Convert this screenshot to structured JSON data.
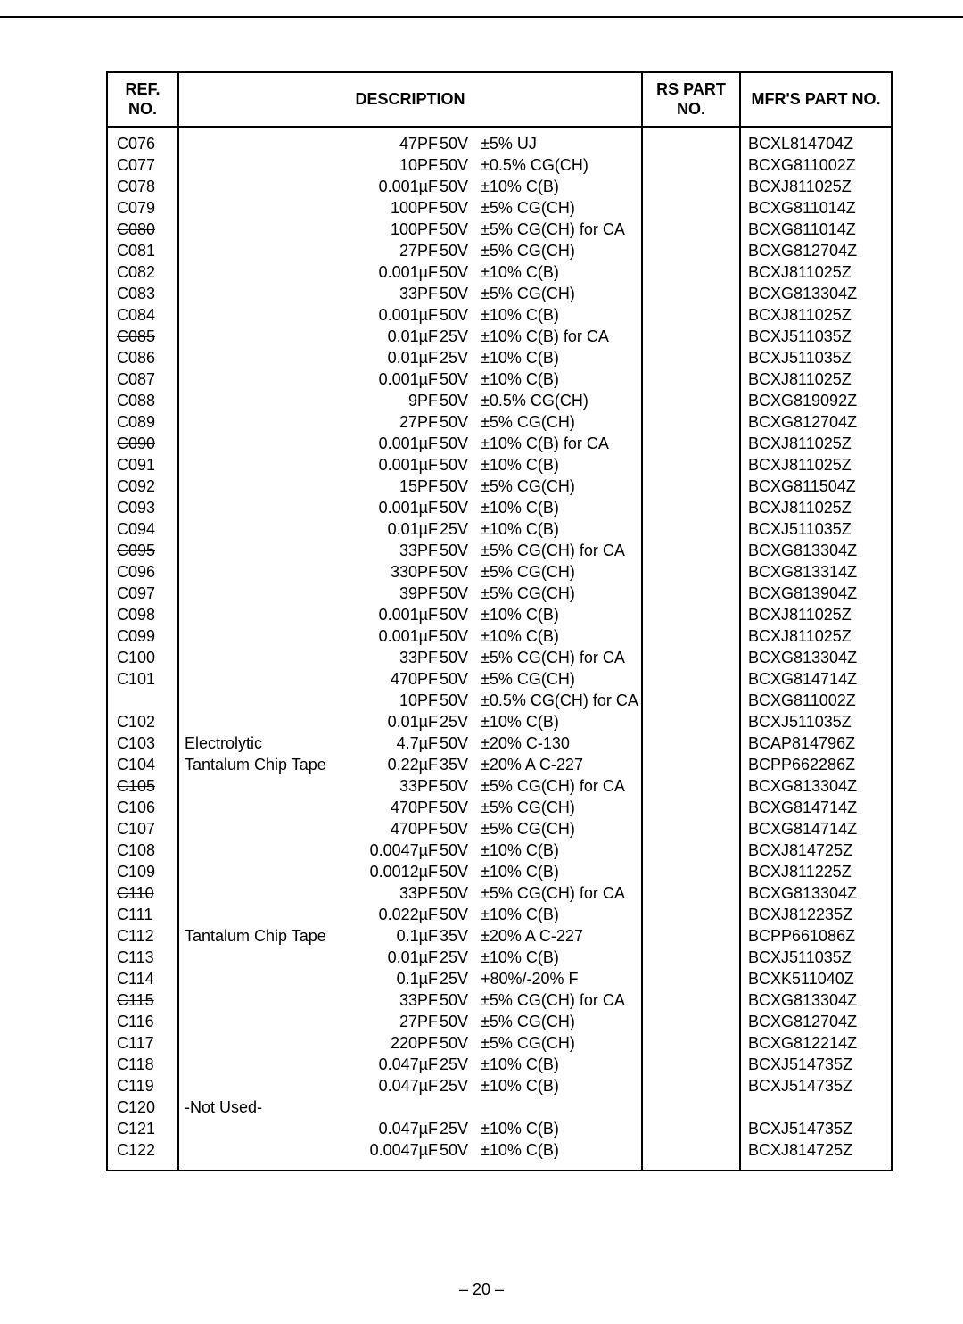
{
  "headers": {
    "ref": "REF.\nNO.",
    "description": "DESCRIPTION",
    "rs": "RS\nPART NO.",
    "mfr": "MFR'S\nPART NO."
  },
  "page_number": "– 20 –",
  "rows": [
    {
      "ref": "C076",
      "strike": false,
      "prefix": "",
      "val": "47PF",
      "volt": "50V",
      "tol": "±5% UJ",
      "mfr": "BCXL814704Z"
    },
    {
      "ref": "C077",
      "strike": false,
      "prefix": "",
      "val": "10PF",
      "volt": "50V",
      "tol": "±0.5% CG(CH)",
      "mfr": "BCXG811002Z"
    },
    {
      "ref": "C078",
      "strike": false,
      "prefix": "",
      "val": "0.001µF",
      "volt": "50V",
      "tol": "±10% C(B)",
      "mfr": "BCXJ811025Z"
    },
    {
      "ref": "C079",
      "strike": false,
      "prefix": "",
      "val": "100PF",
      "volt": "50V",
      "tol": "±5% CG(CH)",
      "mfr": "BCXG811014Z"
    },
    {
      "ref": "C080",
      "strike": true,
      "prefix": "",
      "val": "100PF",
      "volt": "50V",
      "tol": "±5% CG(CH) for CA",
      "mfr": "BCXG811014Z"
    },
    {
      "ref": "C081",
      "strike": false,
      "prefix": "",
      "val": "27PF",
      "volt": "50V",
      "tol": "±5% CG(CH)",
      "mfr": "BCXG812704Z"
    },
    {
      "ref": "C082",
      "strike": false,
      "prefix": "",
      "val": "0.001µF",
      "volt": "50V",
      "tol": "±10% C(B)",
      "mfr": "BCXJ811025Z"
    },
    {
      "ref": "C083",
      "strike": false,
      "prefix": "",
      "val": "33PF",
      "volt": "50V",
      "tol": "±5% CG(CH)",
      "mfr": "BCXG813304Z"
    },
    {
      "ref": "C084",
      "strike": false,
      "prefix": "",
      "val": "0.001µF",
      "volt": "50V",
      "tol": "±10% C(B)",
      "mfr": "BCXJ811025Z"
    },
    {
      "ref": "C085",
      "strike": true,
      "prefix": "",
      "val": "0.01µF",
      "volt": "25V",
      "tol": "±10% C(B) for CA",
      "mfr": "BCXJ511035Z"
    },
    {
      "ref": "C086",
      "strike": false,
      "prefix": "",
      "val": "0.01µF",
      "volt": "25V",
      "tol": "±10% C(B)",
      "mfr": "BCXJ511035Z"
    },
    {
      "ref": "C087",
      "strike": false,
      "prefix": "",
      "val": "0.001µF",
      "volt": "50V",
      "tol": "±10% C(B)",
      "mfr": "BCXJ811025Z"
    },
    {
      "ref": "C088",
      "strike": false,
      "prefix": "",
      "val": "9PF",
      "volt": "50V",
      "tol": "±0.5% CG(CH)",
      "mfr": "BCXG819092Z"
    },
    {
      "ref": "C089",
      "strike": false,
      "prefix": "",
      "val": "27PF",
      "volt": "50V",
      "tol": "±5% CG(CH)",
      "mfr": "BCXG812704Z"
    },
    {
      "ref": "C090",
      "strike": true,
      "prefix": "",
      "val": "0.001µF",
      "volt": "50V",
      "tol": "±10% C(B) for CA",
      "mfr": "BCXJ811025Z"
    },
    {
      "ref": "C091",
      "strike": false,
      "prefix": "",
      "val": "0.001µF",
      "volt": "50V",
      "tol": "±10% C(B)",
      "mfr": "BCXJ811025Z"
    },
    {
      "ref": "C092",
      "strike": false,
      "prefix": "",
      "val": "15PF",
      "volt": "50V",
      "tol": "±5% CG(CH)",
      "mfr": "BCXG811504Z"
    },
    {
      "ref": "C093",
      "strike": false,
      "prefix": "",
      "val": "0.001µF",
      "volt": "50V",
      "tol": "±10% C(B)",
      "mfr": "BCXJ811025Z"
    },
    {
      "ref": "C094",
      "strike": false,
      "prefix": "",
      "val": "0.01µF",
      "volt": "25V",
      "tol": "±10% C(B)",
      "mfr": "BCXJ511035Z"
    },
    {
      "ref": "C095",
      "strike": true,
      "prefix": "",
      "val": "33PF",
      "volt": "50V",
      "tol": "±5% CG(CH) for CA",
      "mfr": "BCXG813304Z"
    },
    {
      "ref": "C096",
      "strike": false,
      "prefix": "",
      "val": "330PF",
      "volt": "50V",
      "tol": "±5% CG(CH)",
      "mfr": "BCXG813314Z"
    },
    {
      "ref": "C097",
      "strike": false,
      "prefix": "",
      "val": "39PF",
      "volt": "50V",
      "tol": "±5% CG(CH)",
      "mfr": "BCXG813904Z"
    },
    {
      "ref": "C098",
      "strike": false,
      "prefix": "",
      "val": "0.001µF",
      "volt": "50V",
      "tol": "±10% C(B)",
      "mfr": "BCXJ811025Z"
    },
    {
      "ref": "C099",
      "strike": false,
      "prefix": "",
      "val": "0.001µF",
      "volt": "50V",
      "tol": "±10% C(B)",
      "mfr": "BCXJ811025Z"
    },
    {
      "ref": "C100",
      "strike": true,
      "prefix": "",
      "val": "33PF",
      "volt": "50V",
      "tol": "±5% CG(CH) for CA",
      "mfr": "BCXG813304Z"
    },
    {
      "ref": "C101",
      "strike": false,
      "prefix": "",
      "val": "470PF",
      "volt": "50V",
      "tol": "±5% CG(CH)",
      "mfr": "BCXG814714Z"
    },
    {
      "ref": "",
      "strike": false,
      "prefix": "",
      "val": "10PF",
      "volt": "50V",
      "tol": "±0.5% CG(CH) for CA",
      "mfr": "BCXG811002Z"
    },
    {
      "ref": "C102",
      "strike": false,
      "prefix": "",
      "val": "0.01µF",
      "volt": "25V",
      "tol": "±10% C(B)",
      "mfr": "BCXJ511035Z"
    },
    {
      "ref": "C103",
      "strike": false,
      "prefix": "Electrolytic",
      "val": "4.7µF",
      "volt": "50V",
      "tol": "±20% C-130",
      "mfr": "BCAP814796Z"
    },
    {
      "ref": "C104",
      "strike": false,
      "prefix": "Tantalum Chip Tape",
      "val": "0.22µF",
      "volt": "35V",
      "tol": "±20% A C-227",
      "mfr": "BCPP662286Z"
    },
    {
      "ref": "C105",
      "strike": true,
      "prefix": "",
      "val": "33PF",
      "volt": "50V",
      "tol": "±5% CG(CH) for CA",
      "mfr": "BCXG813304Z"
    },
    {
      "ref": "C106",
      "strike": false,
      "prefix": "",
      "val": "470PF",
      "volt": "50V",
      "tol": "±5% CG(CH)",
      "mfr": "BCXG814714Z"
    },
    {
      "ref": "C107",
      "strike": false,
      "prefix": "",
      "val": "470PF",
      "volt": "50V",
      "tol": "±5% CG(CH)",
      "mfr": "BCXG814714Z"
    },
    {
      "ref": "C108",
      "strike": false,
      "prefix": "",
      "val": "0.0047µF",
      "volt": "50V",
      "tol": "±10% C(B)",
      "mfr": "BCXJ814725Z"
    },
    {
      "ref": "C109",
      "strike": false,
      "prefix": "",
      "val": "0.0012µF",
      "volt": "50V",
      "tol": "±10% C(B)",
      "mfr": "BCXJ811225Z"
    },
    {
      "ref": "C110",
      "strike": true,
      "prefix": "",
      "val": "33PF",
      "volt": "50V",
      "tol": "±5% CG(CH) for CA",
      "mfr": "BCXG813304Z"
    },
    {
      "ref": "C111",
      "strike": false,
      "prefix": "",
      "val": "0.022µF",
      "volt": "50V",
      "tol": "±10% C(B)",
      "mfr": "BCXJ812235Z"
    },
    {
      "ref": "C112",
      "strike": false,
      "prefix": "Tantalum Chip Tape",
      "val": "0.1µF",
      "volt": "35V",
      "tol": "±20% A C-227",
      "mfr": "BCPP661086Z"
    },
    {
      "ref": "C113",
      "strike": false,
      "prefix": "",
      "val": "0.01µF",
      "volt": "25V",
      "tol": "±10% C(B)",
      "mfr": "BCXJ511035Z"
    },
    {
      "ref": "C114",
      "strike": false,
      "prefix": "",
      "val": "0.1µF",
      "volt": "25V",
      "tol": "+80%/-20% F",
      "mfr": "BCXK511040Z"
    },
    {
      "ref": "C115",
      "strike": true,
      "prefix": "",
      "val": "33PF",
      "volt": "50V",
      "tol": "±5% CG(CH) for CA",
      "mfr": "BCXG813304Z"
    },
    {
      "ref": "C116",
      "strike": false,
      "prefix": "",
      "val": "27PF",
      "volt": "50V",
      "tol": "±5% CG(CH)",
      "mfr": "BCXG812704Z"
    },
    {
      "ref": "C117",
      "strike": false,
      "prefix": "",
      "val": "220PF",
      "volt": "50V",
      "tol": "±5% CG(CH)",
      "mfr": "BCXG812214Z"
    },
    {
      "ref": "C118",
      "strike": false,
      "prefix": "",
      "val": "0.047µF",
      "volt": "25V",
      "tol": "±10% C(B)",
      "mfr": "BCXJ514735Z"
    },
    {
      "ref": "C119",
      "strike": false,
      "prefix": "",
      "val": "0.047µF",
      "volt": "25V",
      "tol": "±10% C(B)",
      "mfr": "BCXJ514735Z"
    },
    {
      "ref": "C120",
      "strike": false,
      "prefix": "-Not Used-",
      "val": "",
      "volt": "",
      "tol": "",
      "mfr": ""
    },
    {
      "ref": "C121",
      "strike": false,
      "prefix": "",
      "val": "0.047µF",
      "volt": "25V",
      "tol": "±10% C(B)",
      "mfr": "BCXJ514735Z"
    },
    {
      "ref": "C122",
      "strike": false,
      "prefix": "",
      "val": "0.0047µF",
      "volt": "50V",
      "tol": "±10% C(B)",
      "mfr": "BCXJ814725Z"
    }
  ]
}
